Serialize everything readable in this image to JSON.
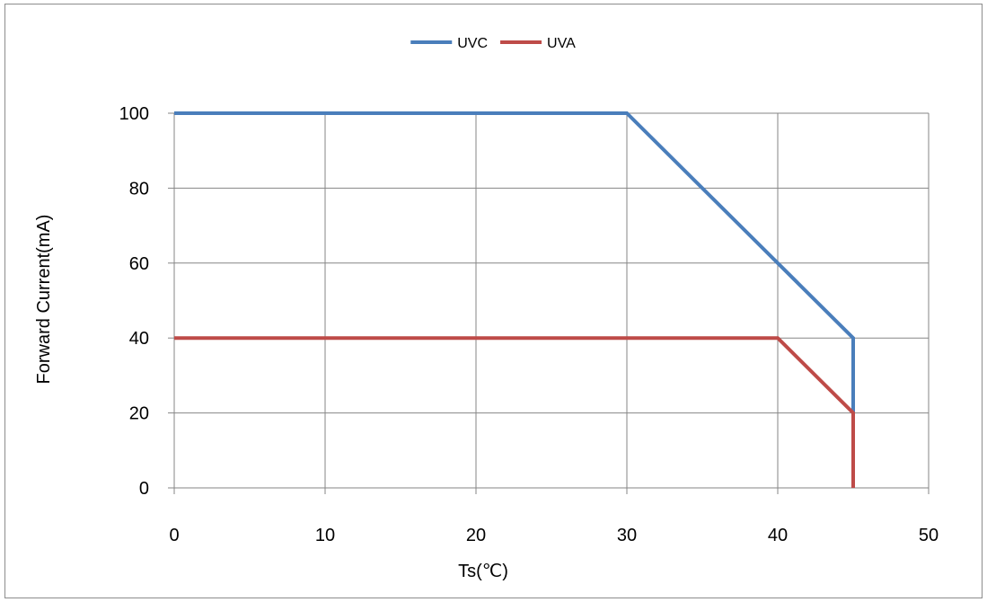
{
  "chart_data": {
    "type": "line",
    "title": "",
    "xlabel": "Ts(℃)",
    "ylabel": "Forward Current(mA)",
    "xlim": [
      0,
      50
    ],
    "ylim": [
      0,
      100
    ],
    "x_ticks": [
      "0",
      "10",
      "20",
      "30",
      "40",
      "50"
    ],
    "y_ticks": [
      "0",
      "20",
      "40",
      "60",
      "80",
      "100"
    ],
    "grid": true,
    "legend_position": "top",
    "series": [
      {
        "name": "UVC",
        "color": "#4a7ebb",
        "points": [
          [
            0,
            100
          ],
          [
            30,
            100
          ],
          [
            40,
            60
          ],
          [
            45,
            40
          ],
          [
            45,
            20
          ]
        ]
      },
      {
        "name": "UVA",
        "color": "#be4b48",
        "points": [
          [
            0,
            40
          ],
          [
            40,
            40
          ],
          [
            45,
            20
          ],
          [
            45,
            0
          ]
        ]
      }
    ]
  }
}
